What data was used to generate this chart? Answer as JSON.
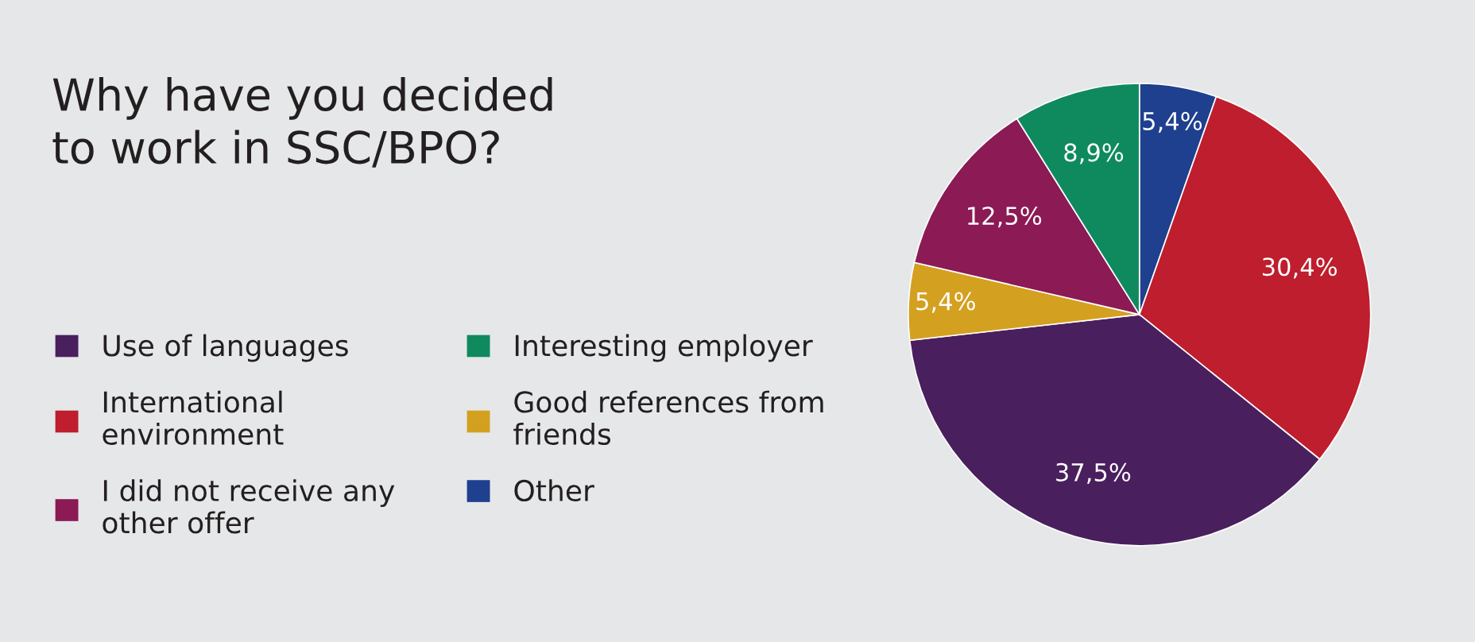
{
  "chart_data": {
    "type": "pie",
    "title": "Why have you decided\nto work in SSC/BPO?",
    "categories": [
      "Other",
      "International\nenvironment",
      "Use of languages",
      "Good references from\nfriends",
      "I did not receive any\nother offer",
      "Interesting employer"
    ],
    "values": [
      5.4,
      30.4,
      37.5,
      5.4,
      12.5,
      8.9
    ],
    "colors": [
      "#1f3f8f",
      "#be1e2d",
      "#4a1f5e",
      "#d4a020",
      "#8b1a55",
      "#0f8a5f"
    ],
    "value_labels": [
      "5,4%",
      "30,4%",
      "37,5%",
      "5,4%",
      "12,5%",
      "8,9%"
    ],
    "legend": "left"
  }
}
